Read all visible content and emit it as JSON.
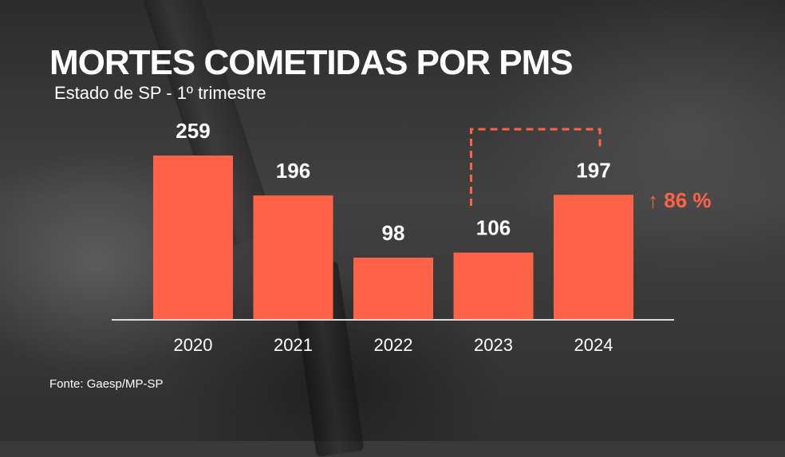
{
  "header": {
    "title": "MORTES COMETIDAS POR PMS",
    "subtitle": "Estado de SP - 1º trimestre"
  },
  "source": "Fonte: Gaesp/MP-SP",
  "annotation": {
    "arrow": "↑",
    "label": "86 %"
  },
  "colors": {
    "bar": "#FF6347",
    "text": "#FFFFFF",
    "accent": "#FF6347",
    "axis": "#DDDDDD"
  },
  "chart_data": {
    "type": "bar",
    "categories": [
      "2020",
      "2021",
      "2022",
      "2023",
      "2024"
    ],
    "values": [
      259,
      196,
      98,
      106,
      197
    ],
    "data_labels": [
      "259",
      "196",
      "98",
      "106",
      "197"
    ],
    "title": "MORTES COMETIDAS POR PMS",
    "subtitle": "Estado de SP - 1º trimestre",
    "xlabel": "",
    "ylabel": "",
    "ylim": [
      0,
      300
    ],
    "grid": false,
    "annotation": {
      "from": "2023",
      "to": "2024",
      "text": "↑ 86 %"
    }
  }
}
